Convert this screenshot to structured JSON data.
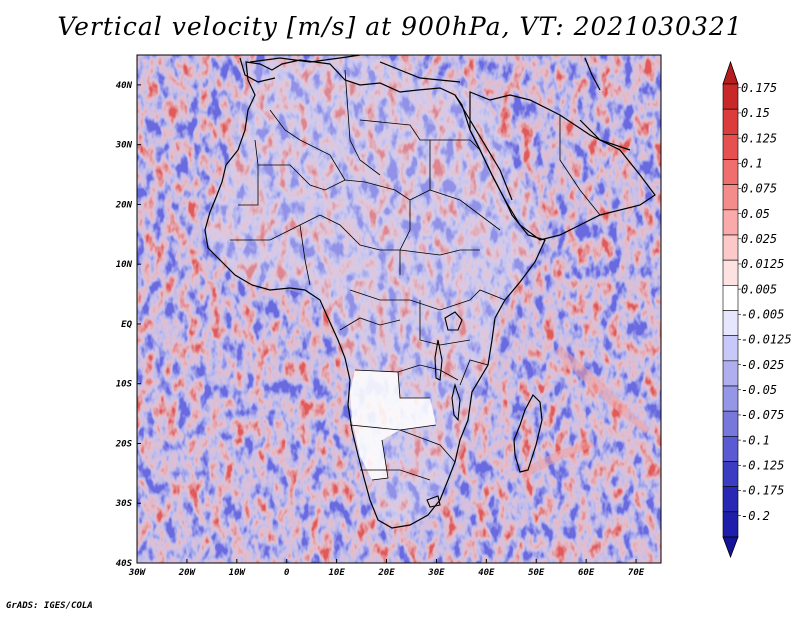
{
  "title": "Vertical velocity [m/s] at 900hPa, VT: 2021030321",
  "credit": "GrADS: IGES/COLA",
  "map": {
    "lon_range": [
      -30,
      75
    ],
    "lat_range": [
      -40,
      45
    ],
    "lon_ticks": [
      {
        "value": -30,
        "label": "30W"
      },
      {
        "value": -20,
        "label": "20W"
      },
      {
        "value": -10,
        "label": "10W"
      },
      {
        "value": 0,
        "label": "0"
      },
      {
        "value": 10,
        "label": "10E"
      },
      {
        "value": 20,
        "label": "20E"
      },
      {
        "value": 30,
        "label": "30E"
      },
      {
        "value": 40,
        "label": "40E"
      },
      {
        "value": 50,
        "label": "50E"
      },
      {
        "value": 60,
        "label": "60E"
      },
      {
        "value": 70,
        "label": "70E"
      }
    ],
    "lat_ticks": [
      {
        "value": 40,
        "label": "40N"
      },
      {
        "value": 30,
        "label": "30N"
      },
      {
        "value": 20,
        "label": "20N"
      },
      {
        "value": 10,
        "label": "10N"
      },
      {
        "value": 0,
        "label": "EQ"
      },
      {
        "value": -10,
        "label": "10S"
      },
      {
        "value": -20,
        "label": "20S"
      },
      {
        "value": -30,
        "label": "30S"
      },
      {
        "value": -40,
        "label": "40S"
      }
    ]
  },
  "colorbar": {
    "labels": [
      "0.175",
      "0.15",
      "0.125",
      "0.1",
      "0.075",
      "0.05",
      "0.025",
      "0.0125",
      "0.005",
      "-0.005",
      "-0.0125",
      "-0.025",
      "-0.05",
      "-0.075",
      "-0.1",
      "-0.125",
      "-0.175",
      "-0.2"
    ],
    "colors": [
      "#c82828",
      "#dc3c3c",
      "#e65050",
      "#f06e6e",
      "#f58c8c",
      "#faaaaa",
      "#fcc8c8",
      "#fee1e1",
      "#ffffff",
      "#e6e6ff",
      "#c8c8fa",
      "#afafef",
      "#9696e6",
      "#7878dc",
      "#5a5ad2",
      "#3c3cc3",
      "#2828b4",
      "#1e1eaa"
    ],
    "arrow_top_color": "#b41e1e",
    "arrow_bottom_color": "#14149b"
  }
}
